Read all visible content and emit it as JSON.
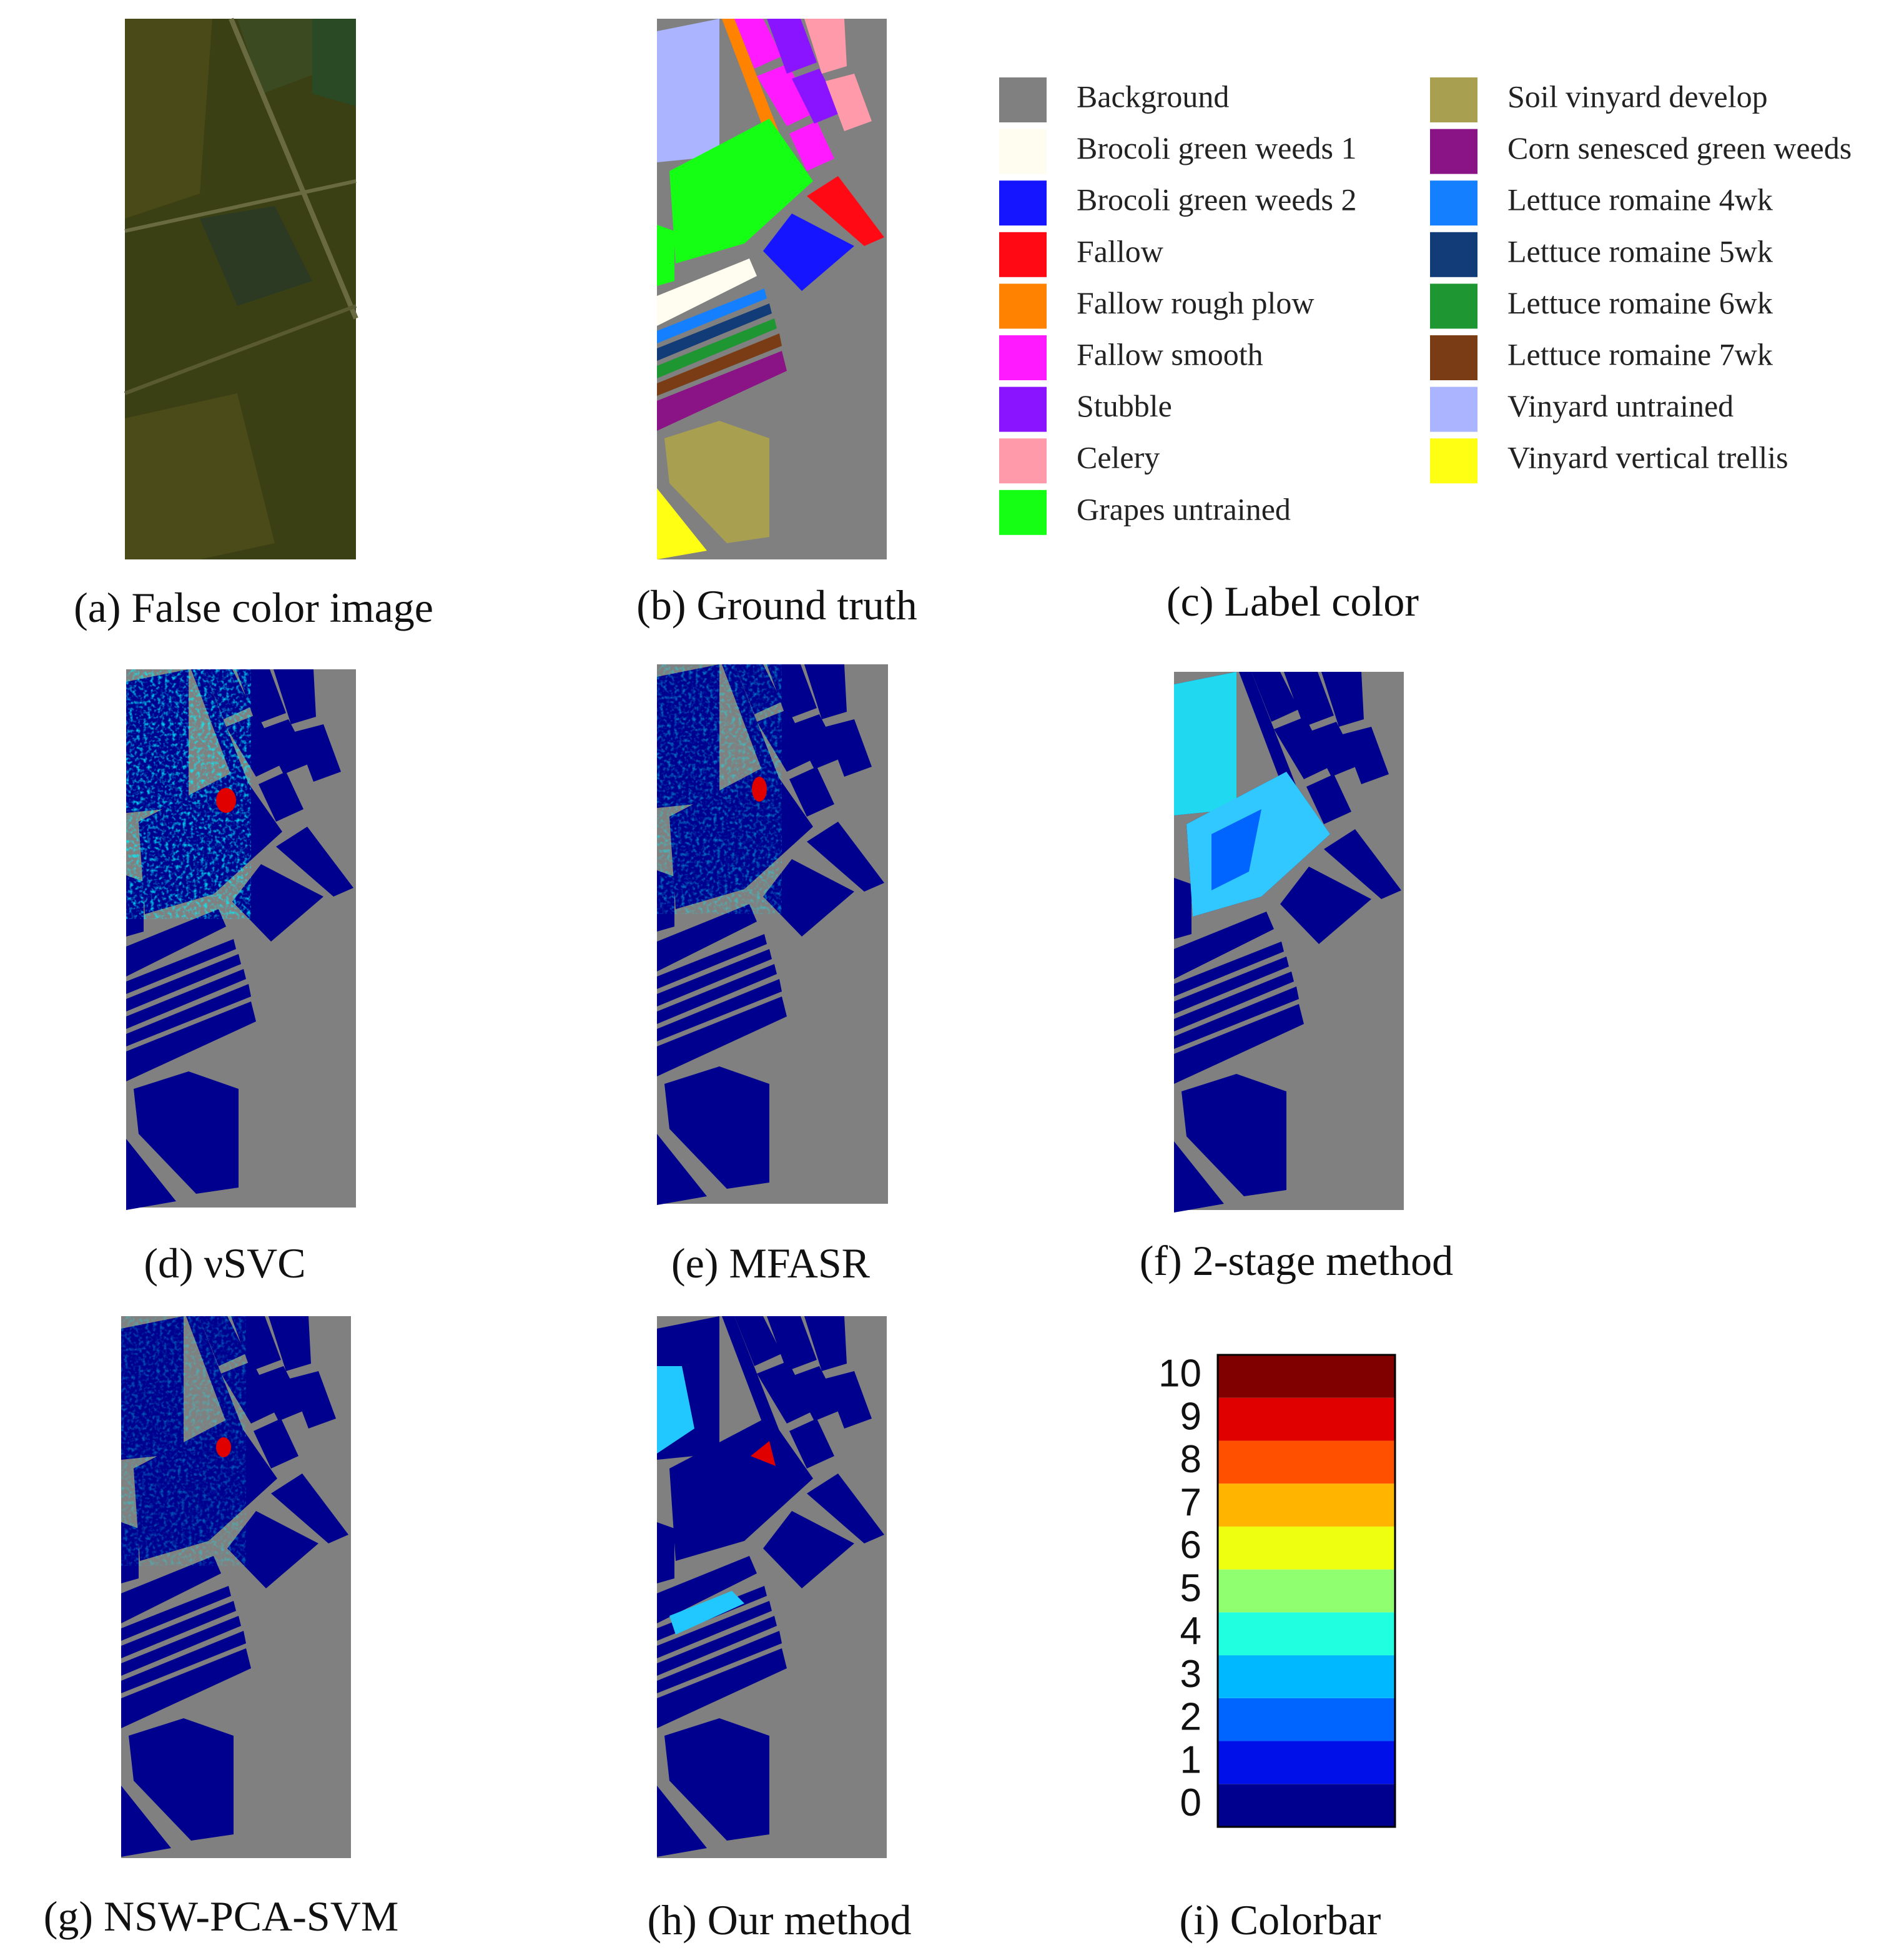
{
  "panels": {
    "a": {
      "caption": "(a) False color image"
    },
    "b": {
      "caption": "(b) Ground truth"
    },
    "c": {
      "caption": "(c) Label color"
    },
    "d": {
      "caption": "(d) νSVC"
    },
    "e": {
      "caption": "(e) MFASR"
    },
    "f": {
      "caption": "(f) 2-stage method"
    },
    "g": {
      "caption": "(g) NSW-PCA-SVM"
    },
    "h": {
      "caption": "(h) Our method"
    },
    "i": {
      "caption": "(i) Colorbar"
    }
  },
  "legend": {
    "items": [
      {
        "label": "Background",
        "color": "#808080"
      },
      {
        "label": "Brocoli green weeds 1",
        "color": "#fffdf0"
      },
      {
        "label": "Brocoli green weeds 2",
        "color": "#1515ff"
      },
      {
        "label": "Fallow",
        "color": "#ff0a14"
      },
      {
        "label": "Fallow rough plow",
        "color": "#ff8200"
      },
      {
        "label": "Fallow smooth",
        "color": "#ff1aff"
      },
      {
        "label": "Stubble",
        "color": "#8a14ff"
      },
      {
        "label": "Celery",
        "color": "#ff9aaa"
      },
      {
        "label": "Grapes untrained",
        "color": "#14ff14"
      },
      {
        "label": "Soil vinyard develop",
        "color": "#a8a050"
      },
      {
        "label": "Corn senesced green weeds",
        "color": "#8a1486"
      },
      {
        "label": "Lettuce romaine 4wk",
        "color": "#1480ff"
      },
      {
        "label": "Lettuce romaine 5wk",
        "color": "#123c78"
      },
      {
        "label": "Lettuce romaine 6wk",
        "color": "#1e9632"
      },
      {
        "label": "Lettuce romaine 7wk",
        "color": "#7a3c14"
      },
      {
        "label": "Vinyard untrained",
        "color": "#aab4ff"
      },
      {
        "label": "Vinyard vertical trellis",
        "color": "#ffff14"
      }
    ]
  },
  "colorbar": {
    "ticks": [
      0,
      1,
      2,
      3,
      4,
      5,
      6,
      7,
      8,
      9,
      10
    ],
    "colors": [
      "#00008f",
      "#0010e8",
      "#0064ff",
      "#00b8ff",
      "#20ffe0",
      "#90ff70",
      "#eeff10",
      "#ffb400",
      "#ff5000",
      "#e00000",
      "#800000"
    ]
  }
}
